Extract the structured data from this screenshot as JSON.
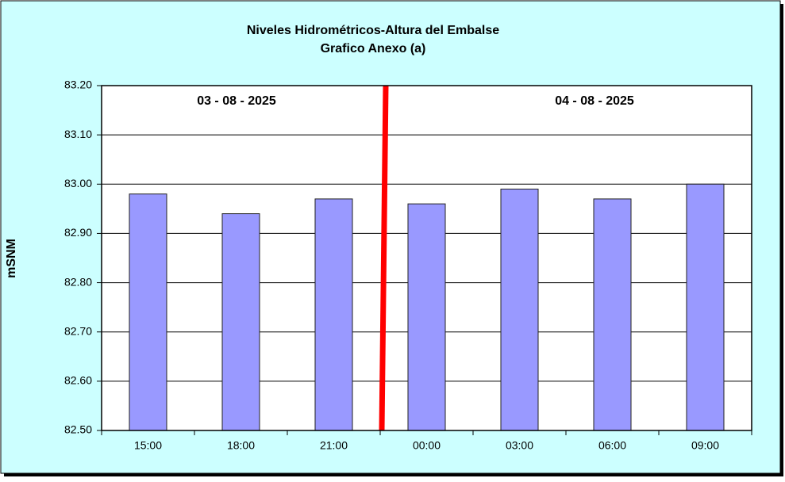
{
  "chart_data": {
    "type": "bar",
    "title": "Niveles Hidrométricos-Altura del Embalse",
    "subtitle": "Grafico Anexo (a)",
    "y_label": "mSNM",
    "annotations": [
      "03 - 08 - 2025",
      "04 - 08 - 2025"
    ],
    "categories": [
      "15:00",
      "18:00",
      "21:00",
      "00:00",
      "03:00",
      "06:00",
      "09:00"
    ],
    "values": [
      82.98,
      82.94,
      82.97,
      82.96,
      82.99,
      82.97,
      83.0
    ],
    "color": "#9999ff",
    "ylim": [
      82.5,
      83.2
    ],
    "yticks": [
      {
        "value": 82.5,
        "label": "82.50"
      },
      {
        "value": 82.6,
        "label": "82.60"
      },
      {
        "value": 82.7,
        "label": "82.70"
      },
      {
        "value": 82.8,
        "label": "82.80"
      },
      {
        "value": 82.9,
        "label": "82.90"
      },
      {
        "value": 83.0,
        "label": "83.00"
      },
      {
        "value": 83.1,
        "label": "83.10"
      },
      {
        "value": 83.2,
        "label": "83.20"
      }
    ],
    "grid": true
  }
}
